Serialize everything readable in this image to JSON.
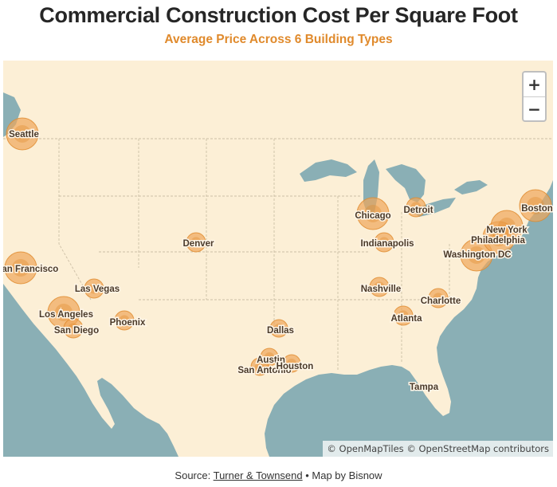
{
  "header": {
    "title": "Commercial Construction Cost Per Square Foot",
    "subtitle": "Average Price Across 6 Building Types"
  },
  "map": {
    "region": "United States",
    "colors": {
      "water": "#8aafb5",
      "land": "#fcefd6",
      "marker_fill": "#f0a65a",
      "marker_stroke": "#e08a2c"
    },
    "zoom_controls": {
      "zoom_in": "+",
      "zoom_out": "−"
    },
    "attribution": "© OpenMapTiles © OpenStreetMap contributors"
  },
  "cities": [
    {
      "name": "Seattle",
      "size": "large"
    },
    {
      "name": "San Francisco",
      "size": "large"
    },
    {
      "name": "Los Angeles",
      "size": "large"
    },
    {
      "name": "San Diego",
      "size": "medium"
    },
    {
      "name": "Las Vegas",
      "size": "medium"
    },
    {
      "name": "Phoenix",
      "size": "medium"
    },
    {
      "name": "Denver",
      "size": "medium"
    },
    {
      "name": "Dallas",
      "size": "small"
    },
    {
      "name": "Austin",
      "size": "small"
    },
    {
      "name": "San Antonio",
      "size": "small"
    },
    {
      "name": "Houston",
      "size": "small"
    },
    {
      "name": "Chicago",
      "size": "large"
    },
    {
      "name": "Detroit",
      "size": "medium"
    },
    {
      "name": "Indianapolis",
      "size": "medium"
    },
    {
      "name": "Nashville",
      "size": "medium"
    },
    {
      "name": "Atlanta",
      "size": "medium"
    },
    {
      "name": "Charlotte",
      "size": "medium"
    },
    {
      "name": "Tampa",
      "size": "none"
    },
    {
      "name": "Washington DC",
      "size": "large"
    },
    {
      "name": "Philadelphia",
      "size": "large"
    },
    {
      "name": "New York",
      "size": "large"
    },
    {
      "name": "Boston",
      "size": "large"
    }
  ],
  "footer": {
    "prefix": "Source: ",
    "source_link": "Turner & Townsend",
    "suffix": " • Map by Bisnow"
  }
}
